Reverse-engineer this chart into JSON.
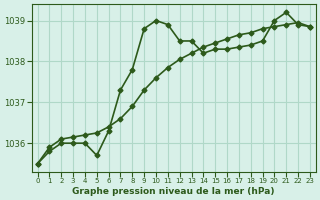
{
  "title": "Graphe pression niveau de la mer (hPa)",
  "bg_color": "#d8f0e8",
  "line_color": "#2d5a1b",
  "grid_color": "#b0d8c8",
  "x_values": [
    0,
    1,
    2,
    3,
    4,
    5,
    6,
    7,
    8,
    9,
    10,
    11,
    12,
    13,
    14,
    15,
    16,
    17,
    18,
    19,
    20,
    21,
    22,
    23
  ],
  "y_detailed": [
    1035.5,
    1035.8,
    1036.0,
    1036.0,
    1036.0,
    1035.7,
    1036.3,
    1037.3,
    1037.8,
    1038.8,
    1039.0,
    1038.9,
    1038.5,
    1038.5,
    1038.2,
    1038.3,
    1038.3,
    1038.35,
    1038.4,
    1038.5,
    1039.0,
    1039.2,
    1038.9,
    1038.85
  ],
  "y_trend": [
    1035.5,
    1035.9,
    1036.1,
    1036.15,
    1036.2,
    1036.25,
    1036.4,
    1036.6,
    1036.9,
    1037.3,
    1037.6,
    1037.85,
    1038.05,
    1038.2,
    1038.35,
    1038.45,
    1038.55,
    1038.65,
    1038.7,
    1038.8,
    1038.85,
    1038.9,
    1038.95,
    1038.85
  ],
  "yticks": [
    1036,
    1037,
    1038,
    1039
  ],
  "xticks": [
    0,
    1,
    2,
    3,
    4,
    5,
    6,
    7,
    8,
    9,
    10,
    11,
    12,
    13,
    14,
    15,
    16,
    17,
    18,
    19,
    20,
    21,
    22,
    23
  ],
  "ylim": [
    1035.3,
    1039.4
  ],
  "xlim": [
    -0.5,
    23.5
  ],
  "marker": "D",
  "markersize": 2.5,
  "linewidth": 1.2
}
